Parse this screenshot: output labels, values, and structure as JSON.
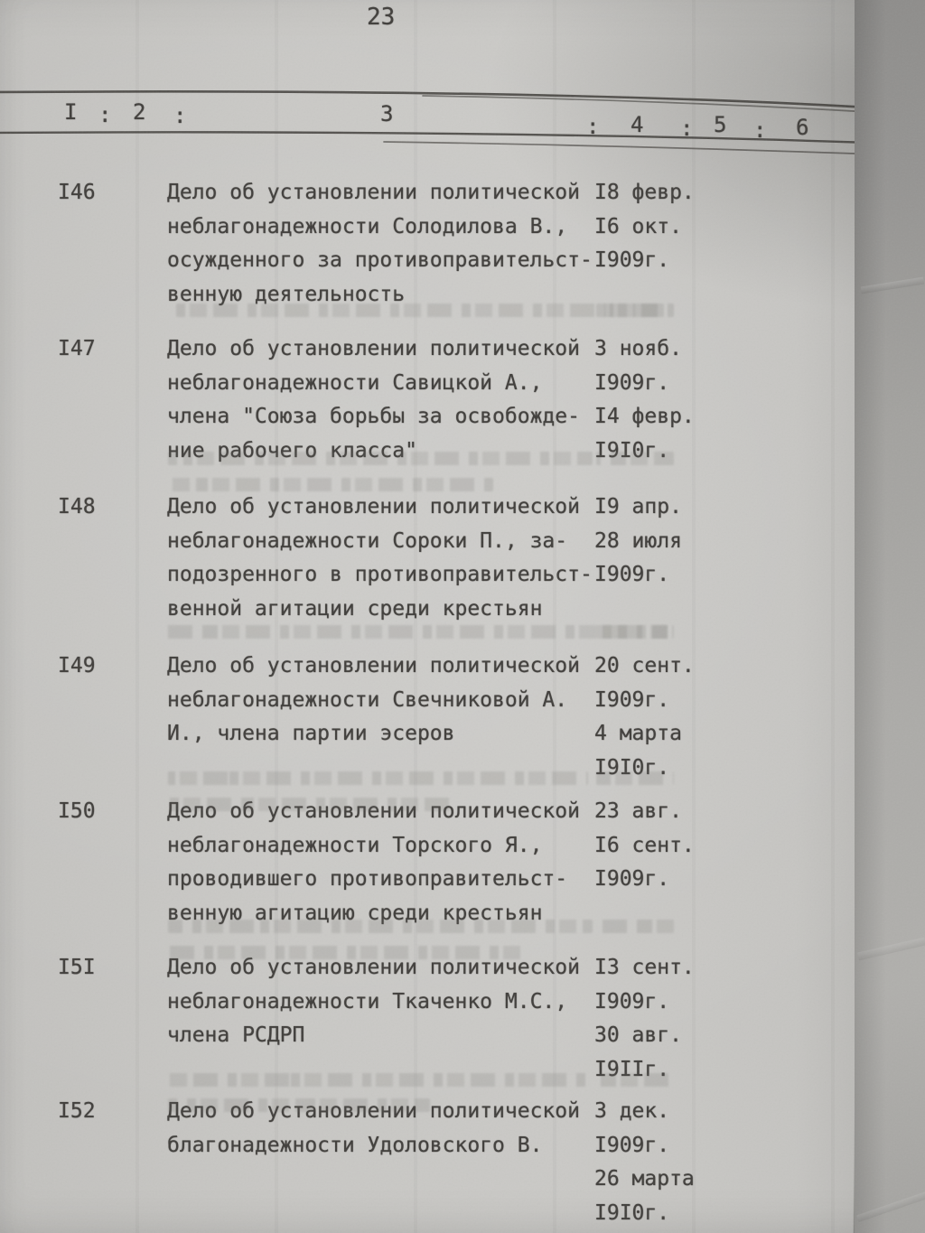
{
  "page": {
    "number": "23"
  },
  "table": {
    "header_columns": [
      "I",
      ":",
      "2",
      ":",
      "3",
      ":",
      "4",
      ":",
      "5",
      ":",
      "6"
    ],
    "entries": [
      {
        "no": "I46",
        "description_lines": [
          "Дело об установлении политической",
          "неблагонадежности Солодилова В.,",
          "осужденного за противоправительст-",
          "венную деятельность"
        ],
        "date_lines": [
          "I8 февр.",
          "I6 окт.",
          "I909г."
        ]
      },
      {
        "no": "I47",
        "description_lines": [
          "Дело об установлении политической",
          "неблагонадежности Савицкой А.,",
          "члена \"Союза борьбы за освобожде-",
          "ние рабочего класса\""
        ],
        "date_lines": [
          "3 нояб.",
          "I909г.",
          "I4 февр.",
          "I9I0г."
        ]
      },
      {
        "no": "I48",
        "description_lines": [
          "Дело об установлении политической",
          "неблагонадежности Сороки П., за-",
          "подозренного в противоправительст-",
          "венной агитации среди крестьян"
        ],
        "date_lines": [
          "I9 апр.",
          "28 июля",
          "I909г."
        ]
      },
      {
        "no": "I49",
        "description_lines": [
          "Дело об установлении политической",
          "неблагонадежности Свечниковой А.",
          "И., члена партии эсеров"
        ],
        "date_lines": [
          "20 сент.",
          "I909г.",
          "4 марта",
          "I9I0г."
        ]
      },
      {
        "no": "I50",
        "description_lines": [
          "Дело об установлении политической",
          "неблагонадежности Торского Я.,",
          "проводившего противоправительст-",
          "венную агитацию среди крестьян"
        ],
        "date_lines": [
          "23 авг.",
          "I6 сент.",
          "I909г."
        ]
      },
      {
        "no": "I5I",
        "description_lines": [
          "Дело об установлении политической",
          "неблагонадежности Ткаченко М.С.,",
          "члена РСДРП"
        ],
        "date_lines": [
          "I3 сент.",
          "I909г.",
          "30 авг.",
          "I9IIг."
        ]
      },
      {
        "no": "I52",
        "description_lines": [
          "Дело об установлении политической",
          "благонадежности Удоловского В."
        ],
        "date_lines": [
          "3 дек.",
          "I909г.",
          "26 марта",
          "I9I0г."
        ]
      }
    ]
  },
  "colors": {
    "paper": "#c7c6c3",
    "ink": "#403e3b",
    "rule": "#4b4946"
  }
}
